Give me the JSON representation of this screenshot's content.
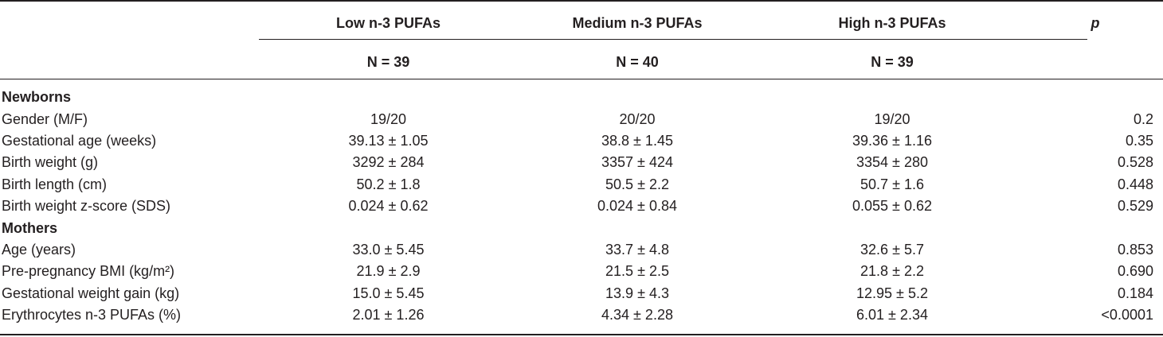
{
  "header": {
    "col_low": "Low n-3 PUFAs",
    "col_medium": "Medium n-3 PUFAs",
    "col_high": "High n-3 PUFAs",
    "col_p": "p",
    "n_low": "N = 39",
    "n_medium": "N = 40",
    "n_high": "N = 39"
  },
  "sections": {
    "newborns": {
      "title": "Newborns",
      "rows": [
        {
          "label": "Gender (M/F)",
          "low": "19/20",
          "medium": "20/20",
          "high": "19/20",
          "p": "0.2"
        },
        {
          "label": "Gestational age (weeks)",
          "low": "39.13 ± 1.05",
          "medium": "38.8 ± 1.45",
          "high": "39.36 ± 1.16",
          "p": "0.35"
        },
        {
          "label": "Birth weight (g)",
          "low": "3292 ± 284",
          "medium": "3357 ± 424",
          "high": "3354 ± 280",
          "p": "0.528"
        },
        {
          "label": "Birth length (cm)",
          "low": "50.2 ± 1.8",
          "medium": "50.5 ± 2.2",
          "high": "50.7 ± 1.6",
          "p": "0.448"
        },
        {
          "label": "Birth weight z-score (SDS)",
          "low": "0.024 ± 0.62",
          "medium": "0.024 ± 0.84",
          "high": "0.055 ± 0.62",
          "p": "0.529"
        }
      ]
    },
    "mothers": {
      "title": "Mothers",
      "rows": [
        {
          "label": "Age (years)",
          "low": "33.0 ± 5.45",
          "medium": "33.7 ± 4.8",
          "high": "32.6 ± 5.7",
          "p": "0.853"
        },
        {
          "label": "Pre-pregnancy BMI (kg/m²)",
          "low": "21.9 ± 2.9",
          "medium": "21.5 ± 2.5",
          "high": "21.8 ± 2.2",
          "p": "0.690"
        },
        {
          "label": "Gestational weight gain (kg)",
          "low": "15.0 ± 5.45",
          "medium": "13.9 ± 4.3",
          "high": "12.95 ± 5.2",
          "p": "0.184"
        },
        {
          "label": "Erythrocytes n-3 PUFAs (%)",
          "low": "2.01 ± 1.26",
          "medium": "4.34 ± 2.28",
          "high": "6.01 ± 2.34",
          "p": "<0.0001"
        }
      ]
    }
  }
}
